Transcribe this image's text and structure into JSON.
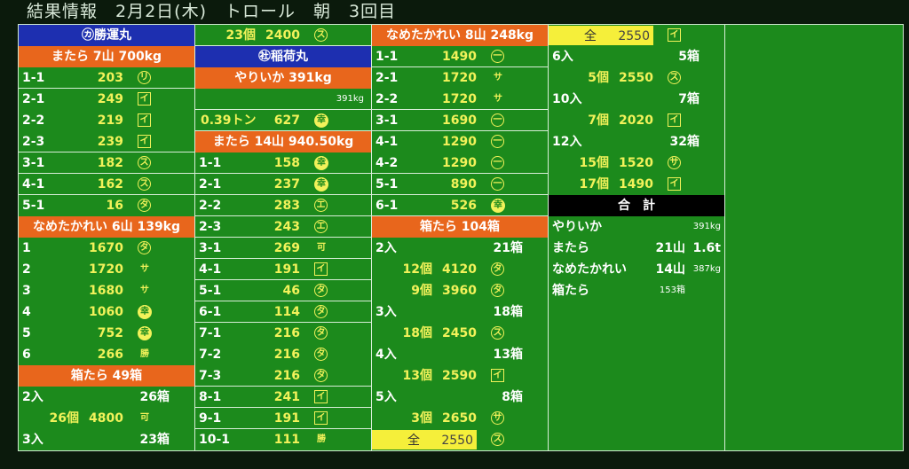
{
  "title": "結果情報　2月2日(木)　トロール　朝　3回目",
  "colors": {
    "board": "#1c8a1c",
    "vessel_header": "#1d2fb0",
    "species_header": "#e8661c",
    "total_header": "#000000",
    "price": "#f2f25a",
    "all_highlight": "#f5ef3a"
  },
  "columns": [
    [
      {
        "type": "vessel",
        "text": "㋕勝運丸"
      },
      {
        "type": "species",
        "text": "またら 7山 700kg"
      },
      {
        "type": "item",
        "label": "1-1",
        "value": "203",
        "mark": "リ",
        "markStyle": "circ"
      },
      {
        "type": "item",
        "label": "2-1",
        "value": "249",
        "mark": "イ",
        "markStyle": "box"
      },
      {
        "type": "item",
        "label": "2-2",
        "value": "219",
        "mark": "イ",
        "markStyle": "box"
      },
      {
        "type": "item",
        "label": "2-3",
        "value": "239",
        "mark": "イ",
        "markStyle": "box"
      },
      {
        "type": "item",
        "label": "3-1",
        "value": "182",
        "mark": "ス",
        "markStyle": "circ"
      },
      {
        "type": "item",
        "label": "4-1",
        "value": "162",
        "mark": "ス",
        "markStyle": "circ"
      },
      {
        "type": "item",
        "label": "5-1",
        "value": "16",
        "mark": "タ",
        "markStyle": "circ"
      },
      {
        "type": "species",
        "text": "なめたかれい 6山 139kg"
      },
      {
        "type": "item",
        "label": "1",
        "value": "1670",
        "mark": "タ",
        "markStyle": "circ"
      },
      {
        "type": "item",
        "label": "2",
        "value": "1720",
        "mark": "サ",
        "markStyle": "plain"
      },
      {
        "type": "item",
        "label": "3",
        "value": "1680",
        "mark": "サ",
        "markStyle": "plain"
      },
      {
        "type": "item",
        "label": "4",
        "value": "1060",
        "mark": "幸",
        "markStyle": "fill"
      },
      {
        "type": "item",
        "label": "5",
        "value": "752",
        "mark": "幸",
        "markStyle": "fill"
      },
      {
        "type": "item",
        "label": "6",
        "value": "266",
        "mark": "勝",
        "markStyle": "plain"
      },
      {
        "type": "species",
        "text": "箱たら 49箱"
      },
      {
        "type": "count",
        "label": "2入",
        "count": "26箱"
      },
      {
        "type": "price",
        "count": "26個",
        "value": "4800",
        "mark": "可",
        "markStyle": "plain"
      },
      {
        "type": "count",
        "label": "3入",
        "count": "23箱"
      }
    ],
    [
      {
        "type": "price",
        "count": "23個",
        "value": "2400",
        "mark": "ス",
        "markStyle": "circ"
      },
      {
        "type": "vessel",
        "text": "㊓稲荷丸"
      },
      {
        "type": "species",
        "text": "やりいか 391kg"
      },
      {
        "type": "note",
        "text": "391kg"
      },
      {
        "type": "price",
        "count": "0.39トン",
        "value": "627",
        "mark": "幸",
        "markStyle": "fill"
      },
      {
        "type": "species",
        "text": "またら 14山 940.50kg"
      },
      {
        "type": "item",
        "label": "1-1",
        "value": "158",
        "mark": "幸",
        "markStyle": "fill"
      },
      {
        "type": "item",
        "label": "2-1",
        "value": "237",
        "mark": "幸",
        "markStyle": "fill"
      },
      {
        "type": "item",
        "label": "2-2",
        "value": "283",
        "mark": "エ",
        "markStyle": "circ"
      },
      {
        "type": "item",
        "label": "2-3",
        "value": "243",
        "mark": "エ",
        "markStyle": "circ"
      },
      {
        "type": "item",
        "label": "3-1",
        "value": "269",
        "mark": "可",
        "markStyle": "plain"
      },
      {
        "type": "item",
        "label": "4-1",
        "value": "191",
        "mark": "イ",
        "markStyle": "box"
      },
      {
        "type": "item",
        "label": "5-1",
        "value": "46",
        "mark": "タ",
        "markStyle": "circ"
      },
      {
        "type": "item",
        "label": "6-1",
        "value": "114",
        "mark": "タ",
        "markStyle": "circ"
      },
      {
        "type": "item",
        "label": "7-1",
        "value": "216",
        "mark": "タ",
        "markStyle": "circ"
      },
      {
        "type": "item",
        "label": "7-2",
        "value": "216",
        "mark": "タ",
        "markStyle": "circ"
      },
      {
        "type": "item",
        "label": "7-3",
        "value": "216",
        "mark": "タ",
        "markStyle": "circ"
      },
      {
        "type": "item",
        "label": "8-1",
        "value": "241",
        "mark": "イ",
        "markStyle": "box"
      },
      {
        "type": "item",
        "label": "9-1",
        "value": "191",
        "mark": "イ",
        "markStyle": "box"
      },
      {
        "type": "item",
        "label": "10-1",
        "value": "111",
        "mark": "勝",
        "markStyle": "plain"
      }
    ],
    [
      {
        "type": "species",
        "text": "なめたかれい 8山 248kg"
      },
      {
        "type": "item",
        "label": "1-1",
        "value": "1490",
        "mark": "一",
        "markStyle": "circ"
      },
      {
        "type": "item",
        "label": "2-1",
        "value": "1720",
        "mark": "サ",
        "markStyle": "plain"
      },
      {
        "type": "item",
        "label": "2-2",
        "value": "1720",
        "mark": "サ",
        "markStyle": "plain"
      },
      {
        "type": "item",
        "label": "3-1",
        "value": "1690",
        "mark": "一",
        "markStyle": "circ"
      },
      {
        "type": "item",
        "label": "4-1",
        "value": "1290",
        "mark": "一",
        "markStyle": "circ"
      },
      {
        "type": "item",
        "label": "4-2",
        "value": "1290",
        "mark": "一",
        "markStyle": "circ"
      },
      {
        "type": "item",
        "label": "5-1",
        "value": "890",
        "mark": "一",
        "markStyle": "circ"
      },
      {
        "type": "item",
        "label": "6-1",
        "value": "526",
        "mark": "幸",
        "markStyle": "fill"
      },
      {
        "type": "species",
        "text": "箱たら 104箱"
      },
      {
        "type": "count",
        "label": "2入",
        "count": "21箱"
      },
      {
        "type": "price",
        "count": "12個",
        "value": "4120",
        "mark": "タ",
        "markStyle": "circ"
      },
      {
        "type": "price",
        "count": "9個",
        "value": "3960",
        "mark": "タ",
        "markStyle": "circ"
      },
      {
        "type": "count",
        "label": "3入",
        "count": "18箱"
      },
      {
        "type": "price",
        "count": "18個",
        "value": "2450",
        "mark": "ス",
        "markStyle": "circ"
      },
      {
        "type": "count",
        "label": "4入",
        "count": "13箱"
      },
      {
        "type": "price",
        "count": "13個",
        "value": "2590",
        "mark": "イ",
        "markStyle": "box"
      },
      {
        "type": "count",
        "label": "5入",
        "count": "8箱"
      },
      {
        "type": "price",
        "count": "3個",
        "value": "2650",
        "mark": "サ",
        "markStyle": "circ"
      },
      {
        "type": "all",
        "label": "全",
        "value": "2550",
        "mark": "ス",
        "markStyle": "circ"
      }
    ],
    [
      {
        "type": "all",
        "label": "全",
        "value": "2550",
        "mark": "イ",
        "markStyle": "box"
      },
      {
        "type": "count",
        "label": "6入",
        "count": "5箱"
      },
      {
        "type": "price",
        "count": "5個",
        "value": "2550",
        "mark": "ス",
        "markStyle": "circ"
      },
      {
        "type": "count",
        "label": "10入",
        "count": "7箱"
      },
      {
        "type": "price",
        "count": "7個",
        "value": "2020",
        "mark": "イ",
        "markStyle": "box"
      },
      {
        "type": "count",
        "label": "12入",
        "count": "32箱"
      },
      {
        "type": "price",
        "count": "15個",
        "value": "1520",
        "mark": "サ",
        "markStyle": "circ"
      },
      {
        "type": "price",
        "count": "17個",
        "value": "1490",
        "mark": "イ",
        "markStyle": "box"
      },
      {
        "type": "total_header",
        "text": "合　計"
      },
      {
        "type": "total",
        "label": "やりいか",
        "mid": "",
        "right": "391kg",
        "rightSmall": true
      },
      {
        "type": "total",
        "label": "またら",
        "mid": "21山",
        "right": "1.6t",
        "rightSmall": false
      },
      {
        "type": "total",
        "label": "なめたかれい",
        "mid": "14山",
        "right": "387kg",
        "rightSmall": true
      },
      {
        "type": "total",
        "label": "箱たら",
        "mid": "153箱",
        "midSmall": true,
        "right": ""
      }
    ],
    []
  ]
}
